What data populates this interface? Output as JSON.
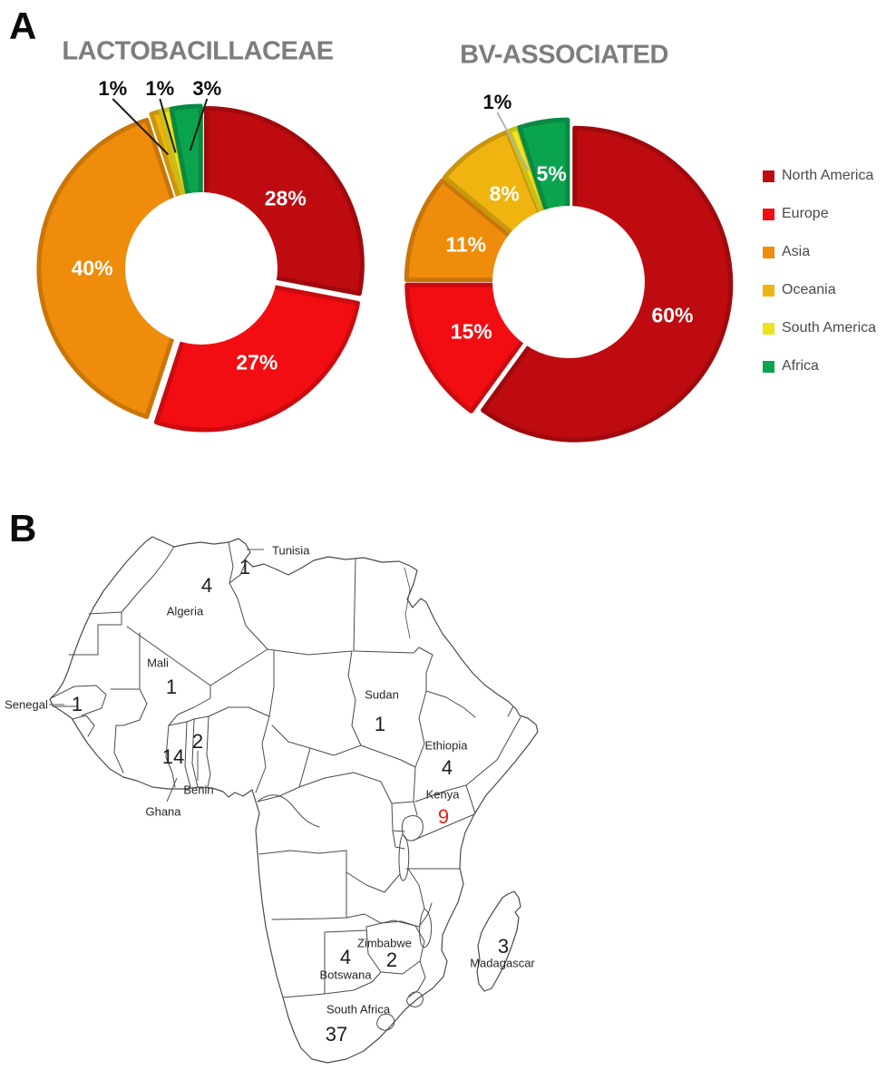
{
  "figure": {
    "panel_a_label": "A",
    "panel_b_label": "B"
  },
  "chart_data": [
    {
      "type": "pie",
      "subtype": "donut",
      "title": "LACTOBACILLACEAE",
      "unit": "%",
      "categories": [
        "North America",
        "Europe",
        "Asia",
        "Oceania",
        "South America",
        "Africa"
      ],
      "values": [
        28,
        27,
        40,
        1,
        1,
        3
      ],
      "labels": [
        "28%",
        "27%",
        "40%",
        "1%",
        "1%",
        "3%"
      ],
      "legend_position": "right",
      "callout_line_color": "#1a1a1a"
    },
    {
      "type": "pie",
      "subtype": "donut",
      "title": "BV-ASSOCIATED",
      "unit": "%",
      "categories": [
        "North America",
        "Europe",
        "Asia",
        "Oceania",
        "South America",
        "Africa"
      ],
      "values": [
        60,
        15,
        11,
        8,
        1,
        5
      ],
      "labels": [
        "60%",
        "15%",
        "11%",
        "8%",
        "1%",
        "5%"
      ],
      "legend_position": "right",
      "callout_line_color": "#b3b3b3"
    }
  ],
  "legend": {
    "items": [
      {
        "label": "North America",
        "color": "#BE0B10"
      },
      {
        "label": "Europe",
        "color": "#F20D13"
      },
      {
        "label": "Asia",
        "color": "#EF8C0B"
      },
      {
        "label": "Oceania",
        "color": "#EFB410"
      },
      {
        "label": "South America",
        "color": "#EFE31C"
      },
      {
        "label": "Africa",
        "color": "#0AA44E"
      }
    ]
  },
  "map": {
    "region": "Africa",
    "highlight_color": "#E32219",
    "countries": [
      {
        "name": "Tunisia",
        "count": "1",
        "highlighted": false
      },
      {
        "name": "Algeria",
        "count": "4",
        "highlighted": false
      },
      {
        "name": "Mali",
        "count": "1",
        "highlighted": false
      },
      {
        "name": "Senegal",
        "count": "1",
        "highlighted": false
      },
      {
        "name": "Ghana",
        "count": "14",
        "highlighted": false
      },
      {
        "name": "Benin",
        "count": "2",
        "highlighted": false
      },
      {
        "name": "Sudan",
        "count": "1",
        "highlighted": false
      },
      {
        "name": "Ethiopia",
        "count": "4",
        "highlighted": false
      },
      {
        "name": "Kenya",
        "count": "9",
        "highlighted": true
      },
      {
        "name": "Zimbabwe",
        "count": "2",
        "highlighted": false
      },
      {
        "name": "Botswana",
        "count": "4",
        "highlighted": false
      },
      {
        "name": "Madagascar",
        "count": "3",
        "highlighted": false
      },
      {
        "name": "South Africa",
        "count": "37",
        "highlighted": false
      }
    ]
  }
}
